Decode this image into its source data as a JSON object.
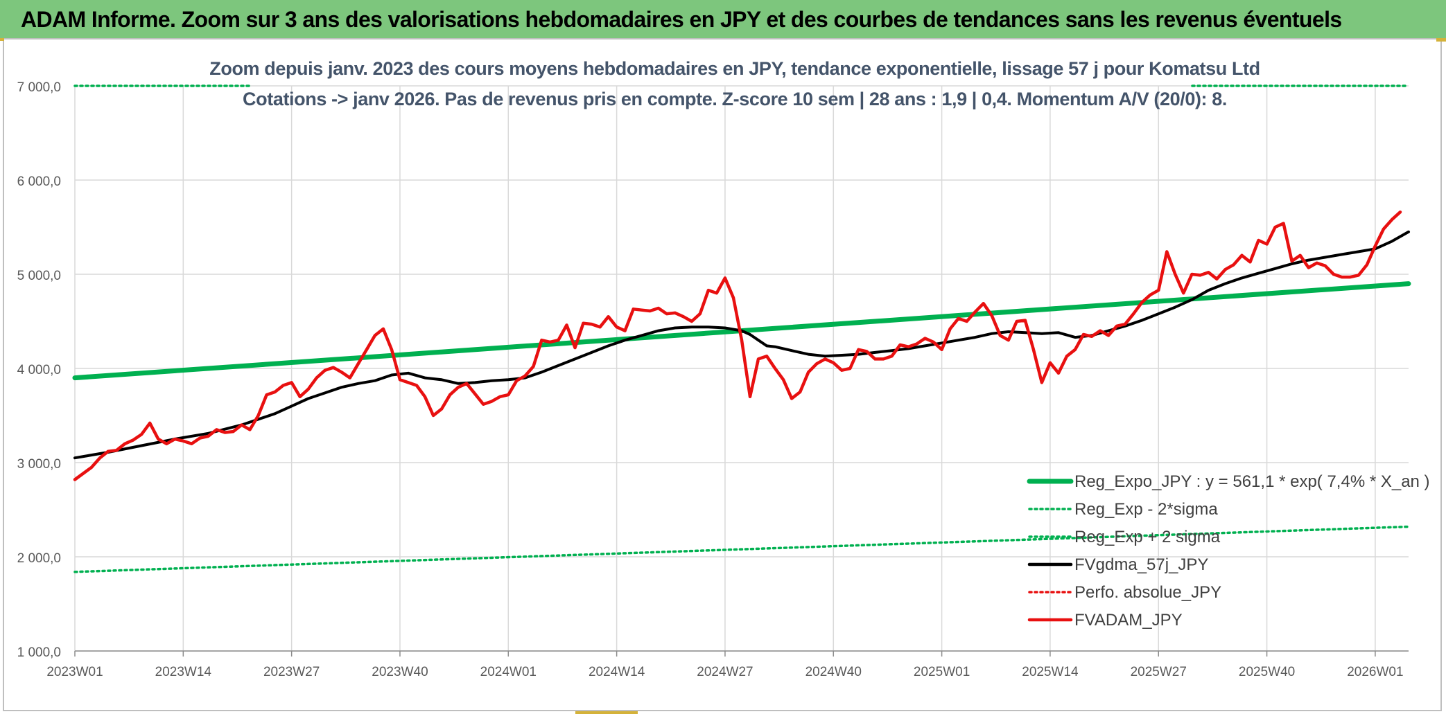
{
  "header": {
    "title": "ADAM Informe. Zoom sur 3 ans des valorisations hebdomadaires en JPY et des courbes de tendances sans les revenus éventuels"
  },
  "colors": {
    "header_bg": "#7dc67d",
    "reg_expo": "#00b050",
    "fvgdma": "#000000",
    "fvadam": "#e81010",
    "perfo": "#e81010",
    "subtitle": "#44546a",
    "grid": "#d9d9d9"
  },
  "chart_data": {
    "type": "line",
    "title_line1": "Zoom depuis janv. 2023 des cours moyens hebdomadaires en JPY, tendance exponentielle, lissage 57 j pour Komatsu Ltd",
    "title_line2": "Cotations -> janv 2026. Pas de revenus pris en compte. Z-score 10 sem | 28 ans : 1,9 | 0,4. Momentum A/V (20/0): 8.",
    "xlabel": "",
    "ylabel": "",
    "ylim": [
      1000,
      7000
    ],
    "yticks": [
      {
        "value": 1000,
        "label": "1 000,0"
      },
      {
        "value": 2000,
        "label": "2 000,0"
      },
      {
        "value": 3000,
        "label": "3 000,0"
      },
      {
        "value": 4000,
        "label": "4 000,0"
      },
      {
        "value": 5000,
        "label": "5 000,0"
      },
      {
        "value": 6000,
        "label": "6 000,0"
      },
      {
        "value": 7000,
        "label": "7 000,0"
      }
    ],
    "week_count": 161,
    "xticks": [
      {
        "index": 0,
        "label": "2023W01"
      },
      {
        "index": 13,
        "label": "2023W14"
      },
      {
        "index": 26,
        "label": "2023W27"
      },
      {
        "index": 39,
        "label": "2023W40"
      },
      {
        "index": 52,
        "label": "2024W01"
      },
      {
        "index": 65,
        "label": "2024W14"
      },
      {
        "index": 78,
        "label": "2024W27"
      },
      {
        "index": 91,
        "label": "2024W40"
      },
      {
        "index": 104,
        "label": "2025W01"
      },
      {
        "index": 117,
        "label": "2025W14"
      },
      {
        "index": 130,
        "label": "2025W27"
      },
      {
        "index": 143,
        "label": "2025W40"
      },
      {
        "index": 156,
        "label": "2026W01"
      }
    ],
    "legend": [
      {
        "key": "reg_expo",
        "label": "Reg_Expo_JPY : y = 561,1 * exp( 7,4% *  X_an )",
        "color": "#00b050",
        "style": "thick"
      },
      {
        "key": "reg_minus",
        "label": "Reg_Exp - 2*sigma",
        "color": "#00b050",
        "style": "dotted"
      },
      {
        "key": "reg_plus",
        "label": "Reg_Exp + 2 sigma",
        "color": "#00b050",
        "style": "dotted"
      },
      {
        "key": "fvgdma",
        "label": "FVgdma_57j_JPY",
        "color": "#000000",
        "style": "solid"
      },
      {
        "key": "perfo",
        "label": "Perfo. absolue_JPY",
        "color": "#e81010",
        "style": "dotted"
      },
      {
        "key": "fvadam",
        "label": "FVADAM_JPY",
        "color": "#e81010",
        "style": "solid"
      }
    ],
    "series": [
      {
        "name": "Reg_Expo_JPY",
        "style": "thick",
        "points": [
          [
            0,
            3900
          ],
          [
            160,
            4900
          ]
        ]
      },
      {
        "name": "Reg_Exp - 2*sigma",
        "style": "dotted",
        "points": [
          [
            0,
            1840
          ],
          [
            160,
            2320
          ]
        ]
      },
      {
        "name": "Reg_Exp + 2 sigma",
        "style": "dotted",
        "points": [
          [
            0,
            7000
          ],
          [
            160,
            7000
          ]
        ]
      },
      {
        "name": "FVgdma_57j_JPY",
        "style": "solid",
        "points": [
          [
            0,
            3050
          ],
          [
            4,
            3110
          ],
          [
            8,
            3180
          ],
          [
            12,
            3250
          ],
          [
            16,
            3310
          ],
          [
            20,
            3400
          ],
          [
            24,
            3520
          ],
          [
            26,
            3600
          ],
          [
            28,
            3680
          ],
          [
            30,
            3740
          ],
          [
            32,
            3800
          ],
          [
            34,
            3840
          ],
          [
            36,
            3870
          ],
          [
            38,
            3930
          ],
          [
            40,
            3950
          ],
          [
            42,
            3900
          ],
          [
            44,
            3880
          ],
          [
            46,
            3840
          ],
          [
            48,
            3850
          ],
          [
            50,
            3870
          ],
          [
            52,
            3880
          ],
          [
            54,
            3900
          ],
          [
            56,
            3960
          ],
          [
            58,
            4030
          ],
          [
            60,
            4100
          ],
          [
            62,
            4170
          ],
          [
            64,
            4240
          ],
          [
            66,
            4300
          ],
          [
            68,
            4350
          ],
          [
            70,
            4400
          ],
          [
            72,
            4430
          ],
          [
            74,
            4440
          ],
          [
            76,
            4440
          ],
          [
            78,
            4430
          ],
          [
            80,
            4400
          ],
          [
            81,
            4360
          ],
          [
            82,
            4300
          ],
          [
            83,
            4240
          ],
          [
            84,
            4230
          ],
          [
            86,
            4190
          ],
          [
            88,
            4150
          ],
          [
            90,
            4130
          ],
          [
            92,
            4140
          ],
          [
            94,
            4150
          ],
          [
            96,
            4170
          ],
          [
            98,
            4190
          ],
          [
            100,
            4210
          ],
          [
            102,
            4240
          ],
          [
            104,
            4270
          ],
          [
            106,
            4300
          ],
          [
            108,
            4330
          ],
          [
            110,
            4370
          ],
          [
            112,
            4390
          ],
          [
            114,
            4380
          ],
          [
            116,
            4370
          ],
          [
            118,
            4380
          ],
          [
            120,
            4330
          ],
          [
            122,
            4350
          ],
          [
            124,
            4400
          ],
          [
            126,
            4450
          ],
          [
            128,
            4510
          ],
          [
            130,
            4580
          ],
          [
            132,
            4650
          ],
          [
            134,
            4730
          ],
          [
            136,
            4830
          ],
          [
            138,
            4900
          ],
          [
            140,
            4960
          ],
          [
            142,
            5010
          ],
          [
            144,
            5060
          ],
          [
            146,
            5110
          ],
          [
            148,
            5150
          ],
          [
            150,
            5180
          ],
          [
            152,
            5210
          ],
          [
            154,
            5240
          ],
          [
            156,
            5270
          ],
          [
            158,
            5350
          ],
          [
            160,
            5450
          ]
        ]
      },
      {
        "name": "FVADAM_JPY",
        "style": "solid",
        "points": [
          [
            0,
            2820
          ],
          [
            2,
            2950
          ],
          [
            3,
            3050
          ],
          [
            4,
            3120
          ],
          [
            5,
            3130
          ],
          [
            6,
            3200
          ],
          [
            7,
            3240
          ],
          [
            8,
            3300
          ],
          [
            9,
            3420
          ],
          [
            10,
            3250
          ],
          [
            11,
            3200
          ],
          [
            12,
            3250
          ],
          [
            13,
            3230
          ],
          [
            14,
            3200
          ],
          [
            15,
            3260
          ],
          [
            16,
            3280
          ],
          [
            17,
            3350
          ],
          [
            18,
            3320
          ],
          [
            19,
            3330
          ],
          [
            20,
            3400
          ],
          [
            21,
            3350
          ],
          [
            22,
            3500
          ],
          [
            23,
            3720
          ],
          [
            24,
            3750
          ],
          [
            25,
            3820
          ],
          [
            26,
            3850
          ],
          [
            27,
            3700
          ],
          [
            28,
            3780
          ],
          [
            29,
            3900
          ],
          [
            30,
            3980
          ],
          [
            31,
            4010
          ],
          [
            32,
            3960
          ],
          [
            33,
            3900
          ],
          [
            34,
            4050
          ],
          [
            35,
            4200
          ],
          [
            36,
            4350
          ],
          [
            37,
            4420
          ],
          [
            38,
            4200
          ],
          [
            39,
            3880
          ],
          [
            40,
            3850
          ],
          [
            41,
            3820
          ],
          [
            42,
            3700
          ],
          [
            43,
            3500
          ],
          [
            44,
            3570
          ],
          [
            45,
            3720
          ],
          [
            46,
            3800
          ],
          [
            47,
            3840
          ],
          [
            48,
            3730
          ],
          [
            49,
            3620
          ],
          [
            50,
            3650
          ],
          [
            51,
            3700
          ],
          [
            52,
            3720
          ],
          [
            53,
            3870
          ],
          [
            54,
            3920
          ],
          [
            55,
            4020
          ],
          [
            56,
            4300
          ],
          [
            57,
            4280
          ],
          [
            58,
            4300
          ],
          [
            59,
            4460
          ],
          [
            60,
            4220
          ],
          [
            61,
            4480
          ],
          [
            62,
            4470
          ],
          [
            63,
            4440
          ],
          [
            64,
            4550
          ],
          [
            65,
            4440
          ],
          [
            66,
            4400
          ],
          [
            67,
            4630
          ],
          [
            68,
            4620
          ],
          [
            69,
            4610
          ],
          [
            70,
            4640
          ],
          [
            71,
            4580
          ],
          [
            72,
            4590
          ],
          [
            73,
            4550
          ],
          [
            74,
            4500
          ],
          [
            75,
            4580
          ],
          [
            76,
            4830
          ],
          [
            77,
            4800
          ],
          [
            78,
            4960
          ],
          [
            79,
            4750
          ],
          [
            80,
            4300
          ],
          [
            81,
            3700
          ],
          [
            82,
            4100
          ],
          [
            83,
            4130
          ],
          [
            84,
            4000
          ],
          [
            85,
            3880
          ],
          [
            86,
            3680
          ],
          [
            87,
            3750
          ],
          [
            88,
            3960
          ],
          [
            89,
            4050
          ],
          [
            90,
            4100
          ],
          [
            91,
            4060
          ],
          [
            92,
            3980
          ],
          [
            93,
            4000
          ],
          [
            94,
            4200
          ],
          [
            95,
            4180
          ],
          [
            96,
            4100
          ],
          [
            97,
            4100
          ],
          [
            98,
            4130
          ],
          [
            99,
            4250
          ],
          [
            100,
            4230
          ],
          [
            101,
            4260
          ],
          [
            102,
            4320
          ],
          [
            103,
            4280
          ],
          [
            104,
            4200
          ],
          [
            105,
            4420
          ],
          [
            106,
            4530
          ],
          [
            107,
            4500
          ],
          [
            108,
            4600
          ],
          [
            109,
            4690
          ],
          [
            110,
            4560
          ],
          [
            111,
            4350
          ],
          [
            112,
            4300
          ],
          [
            113,
            4500
          ],
          [
            114,
            4510
          ],
          [
            115,
            4200
          ],
          [
            116,
            3850
          ],
          [
            117,
            4060
          ],
          [
            118,
            3950
          ],
          [
            119,
            4130
          ],
          [
            120,
            4200
          ],
          [
            121,
            4360
          ],
          [
            122,
            4340
          ],
          [
            123,
            4400
          ],
          [
            124,
            4350
          ],
          [
            125,
            4450
          ],
          [
            126,
            4470
          ],
          [
            127,
            4580
          ],
          [
            128,
            4700
          ],
          [
            129,
            4780
          ],
          [
            130,
            4830
          ],
          [
            131,
            5240
          ],
          [
            132,
            5000
          ],
          [
            133,
            4800
          ],
          [
            134,
            5000
          ],
          [
            135,
            4990
          ],
          [
            136,
            5020
          ],
          [
            137,
            4950
          ],
          [
            138,
            5050
          ],
          [
            139,
            5100
          ],
          [
            140,
            5200
          ],
          [
            141,
            5130
          ],
          [
            142,
            5360
          ],
          [
            143,
            5320
          ],
          [
            144,
            5500
          ],
          [
            145,
            5540
          ],
          [
            146,
            5140
          ],
          [
            147,
            5200
          ],
          [
            148,
            5070
          ],
          [
            149,
            5120
          ],
          [
            150,
            5090
          ],
          [
            151,
            5000
          ],
          [
            152,
            4970
          ],
          [
            153,
            4970
          ],
          [
            154,
            4990
          ],
          [
            155,
            5100
          ],
          [
            156,
            5300
          ],
          [
            157,
            5480
          ],
          [
            158,
            5580
          ],
          [
            159,
            5660
          ]
        ]
      }
    ]
  }
}
